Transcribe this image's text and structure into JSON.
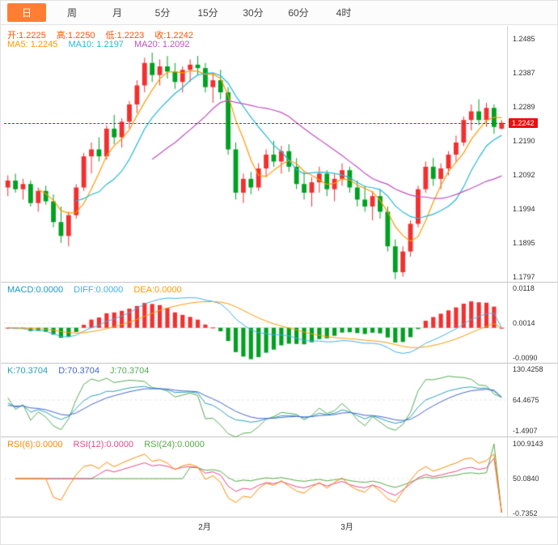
{
  "toolbar": {
    "tabs": [
      "日",
      "周",
      "月",
      "5分",
      "15分",
      "30分",
      "60分",
      "4时"
    ],
    "active": "日"
  },
  "main": {
    "header": {
      "open": "开:1.2225",
      "high": "高:1.2250",
      "low": "低:1.2223",
      "close": "收:1.2242"
    },
    "ma_header": {
      "ma5": "MA5: 1.2245",
      "ma10": "MA10: 1.2197",
      "ma20": "MA20: 1.2092"
    },
    "price_badge": "1.2242",
    "axis_labels": [
      "1.2485",
      "1.2387",
      "1.2289",
      "1.2190",
      "1.2092",
      "1.1994",
      "1.1895",
      "1.1797"
    ]
  },
  "macd": {
    "header": {
      "macd": "MACD:0.0000",
      "diff": "DIFF:0.0000",
      "dea": "DEA:0.0000"
    },
    "axis_labels": [
      "0.0118",
      "0.0014",
      "-0.0090"
    ]
  },
  "kdj": {
    "header": {
      "k": "K:70.3704",
      "d": "D:70.3704",
      "j": "J:70.3704"
    },
    "axis_labels": [
      "130.4258",
      "64.4675",
      "-1.4907"
    ]
  },
  "rsi": {
    "header": {
      "rsi6": "RSI(6):0.0000",
      "rsi12": "RSI(12):0.0000",
      "rsi24": "RSI(24):0.0000"
    },
    "axis_labels": [
      "100.9143",
      "50.0840",
      "-0.7352"
    ]
  },
  "time_axis": {
    "labels": [
      {
        "text": "2月",
        "pos": 0.4
      },
      {
        "text": "3月",
        "pos": 0.684
      }
    ]
  },
  "colors": {
    "up": "#f23030",
    "down": "#00a021",
    "accent_tab": "#ff7e33",
    "price_line": "#e81010",
    "badge_bg": "#e81010",
    "ma5": "#ff9900",
    "ma10": "#26b8d8",
    "ma20": "#c050c0",
    "diff": "#3fb0ea",
    "dea": "#ff9900",
    "k": "#2aa0b8",
    "d": "#4466cc",
    "j": "#55aa55",
    "rsi6": "#ff8800",
    "rsi12": "#e8488a",
    "rsi24": "#55aa44",
    "axis_text": "#333333"
  },
  "chart_data": {
    "type": "candlestick",
    "timeframe": "日",
    "title": "",
    "current_price": 1.2242,
    "ohlc": {
      "open": 1.2225,
      "high": 1.225,
      "low": 1.2223,
      "close": 1.2242
    },
    "ma": {
      "MA5": 1.2245,
      "MA10": 1.2197,
      "MA20": 1.2092
    },
    "indicators": {
      "MACD": 0.0,
      "DIFF": 0.0,
      "DEA": 0.0,
      "K": 70.3704,
      "D": 70.3704,
      "J": 70.3704,
      "RSI6": 0.0,
      "RSI12": 0.0,
      "RSI24": 0.0
    },
    "x_month_labels": [
      "2月",
      "3月"
    ],
    "panels": {
      "main": {
        "ylim": [
          1.178,
          1.2522
        ]
      },
      "macd": {
        "ylim": [
          -0.01071,
          0.01351
        ]
      },
      "kdj": {
        "ylim": [
          -15.56,
          142.74
        ]
      },
      "rsi": {
        "ylim": [
          -6.72,
          110.48
        ]
      }
    },
    "candles": [
      [
        1.2055,
        1.209,
        1.203,
        1.2075
      ],
      [
        1.2075,
        1.2095,
        1.204,
        1.205
      ],
      [
        1.205,
        1.208,
        1.202,
        1.2065
      ],
      [
        1.2065,
        1.2075,
        1.2,
        1.201
      ],
      [
        1.201,
        1.2055,
        1.1985,
        1.2045
      ],
      [
        1.2045,
        1.206,
        1.2005,
        1.2015
      ],
      [
        1.2015,
        1.2035,
        1.194,
        1.1955
      ],
      [
        1.1955,
        1.2,
        1.1895,
        1.1915
      ],
      [
        1.1915,
        1.1985,
        1.1885,
        1.1975
      ],
      [
        1.1975,
        1.2065,
        1.1965,
        1.2055
      ],
      [
        1.2055,
        1.2155,
        1.2045,
        1.2145
      ],
      [
        1.2145,
        1.2185,
        1.2095,
        1.2165
      ],
      [
        1.2165,
        1.22,
        1.213,
        1.2145
      ],
      [
        1.2145,
        1.2235,
        1.2135,
        1.2225
      ],
      [
        1.2225,
        1.2265,
        1.218,
        1.22
      ],
      [
        1.22,
        1.2255,
        1.217,
        1.2245
      ],
      [
        1.2245,
        1.2305,
        1.2225,
        1.2295
      ],
      [
        1.2295,
        1.2365,
        1.227,
        1.235
      ],
      [
        1.235,
        1.243,
        1.233,
        1.2415
      ],
      [
        1.2415,
        1.2445,
        1.236,
        1.238
      ],
      [
        1.238,
        1.2425,
        1.235,
        1.2405
      ],
      [
        1.2405,
        1.2435,
        1.237,
        1.239
      ],
      [
        1.239,
        1.2415,
        1.234,
        1.236
      ],
      [
        1.236,
        1.2405,
        1.233,
        1.2395
      ],
      [
        1.2395,
        1.2425,
        1.236,
        1.241
      ],
      [
        1.241,
        1.2435,
        1.238,
        1.24
      ],
      [
        1.24,
        1.2415,
        1.233,
        1.2345
      ],
      [
        1.2345,
        1.2385,
        1.23,
        1.2365
      ],
      [
        1.2365,
        1.2395,
        1.231,
        1.233
      ],
      [
        1.233,
        1.2345,
        1.215,
        1.2165
      ],
      [
        1.2165,
        1.2185,
        1.202,
        1.204
      ],
      [
        1.204,
        1.2095,
        1.201,
        1.208
      ],
      [
        1.208,
        1.21,
        1.2035,
        1.2055
      ],
      [
        1.2055,
        1.2125,
        1.2045,
        1.211
      ],
      [
        1.211,
        1.2165,
        1.2085,
        1.215
      ],
      [
        1.215,
        1.219,
        1.2115,
        1.213
      ],
      [
        1.213,
        1.2175,
        1.2095,
        1.216
      ],
      [
        1.216,
        1.218,
        1.21,
        1.2115
      ],
      [
        1.2115,
        1.214,
        1.205,
        1.2065
      ],
      [
        1.2065,
        1.21,
        1.202,
        1.204
      ],
      [
        1.204,
        1.2085,
        1.2,
        1.207
      ],
      [
        1.207,
        1.2115,
        1.204,
        1.2095
      ],
      [
        1.2095,
        1.2105,
        1.203,
        1.205
      ],
      [
        1.205,
        1.2095,
        1.2015,
        1.208
      ],
      [
        1.208,
        1.2125,
        1.206,
        1.2105
      ],
      [
        1.2105,
        1.2115,
        1.204,
        1.2055
      ],
      [
        1.2055,
        1.2075,
        1.2,
        1.202
      ],
      [
        1.202,
        1.206,
        1.1985,
        1.2
      ],
      [
        1.2,
        1.2045,
        1.196,
        1.203
      ],
      [
        1.203,
        1.205,
        1.1965,
        1.1985
      ],
      [
        1.1985,
        1.2,
        1.187,
        1.1885
      ],
      [
        1.1885,
        1.1905,
        1.179,
        1.181
      ],
      [
        1.181,
        1.1885,
        1.1797,
        1.187
      ],
      [
        1.187,
        1.196,
        1.1855,
        1.195
      ],
      [
        1.195,
        1.206,
        1.194,
        1.205
      ],
      [
        1.205,
        1.213,
        1.204,
        1.2115
      ],
      [
        1.2115,
        1.214,
        1.206,
        1.208
      ],
      [
        1.208,
        1.2125,
        1.205,
        1.211
      ],
      [
        1.211,
        1.216,
        1.209,
        1.215
      ],
      [
        1.215,
        1.2205,
        1.213,
        1.2185
      ],
      [
        1.2185,
        1.226,
        1.2175,
        1.225
      ],
      [
        1.225,
        1.2295,
        1.222,
        1.2275
      ],
      [
        1.2275,
        1.231,
        1.2235,
        1.225
      ],
      [
        1.225,
        1.23,
        1.223,
        1.2285
      ],
      [
        1.2285,
        1.2295,
        1.221,
        1.223
      ],
      [
        1.2225,
        1.225,
        1.2223,
        1.2242
      ]
    ]
  }
}
